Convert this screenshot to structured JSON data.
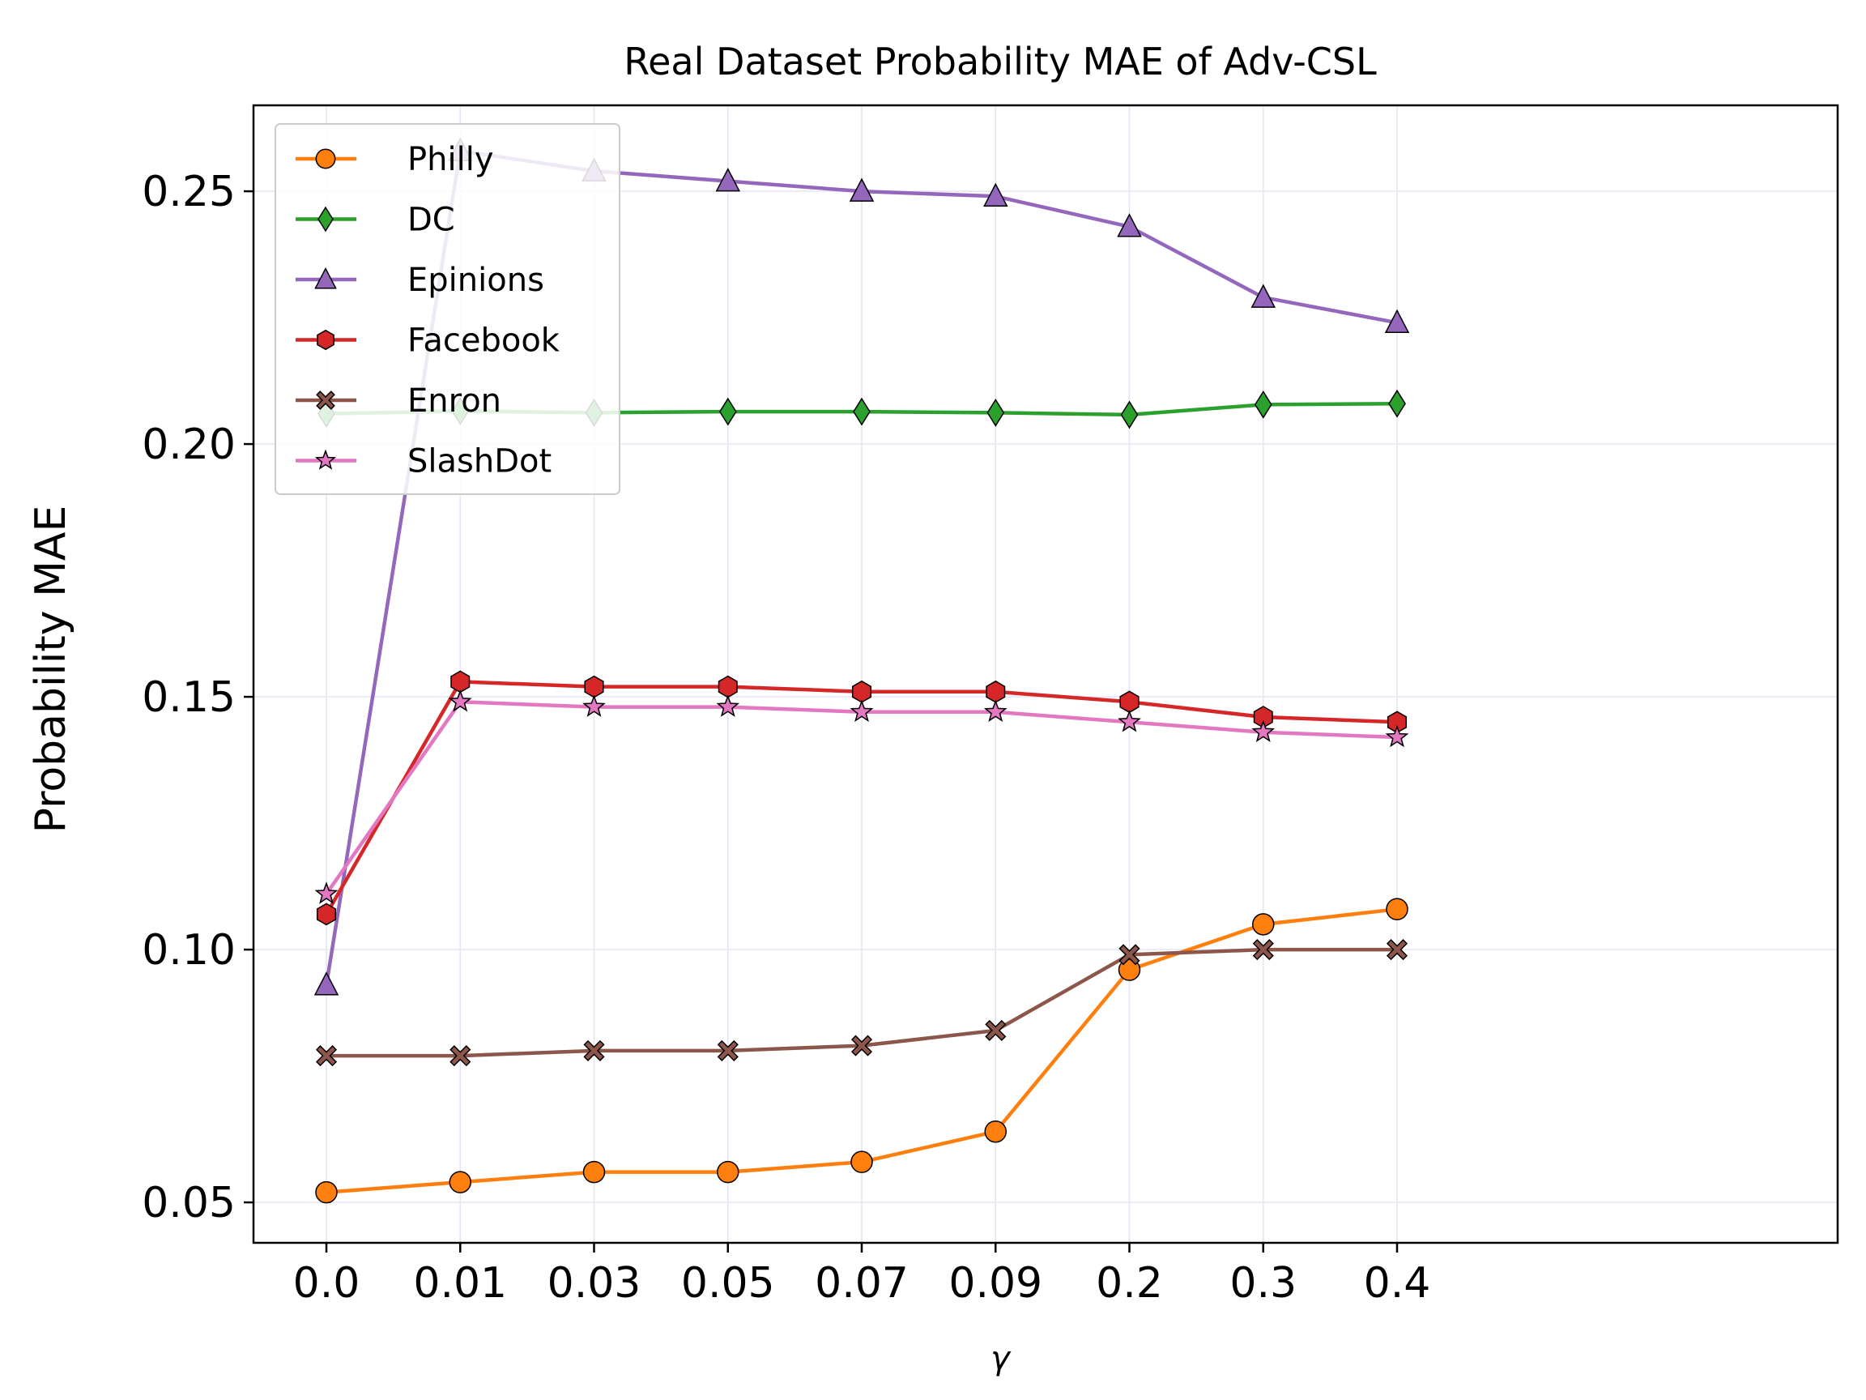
{
  "chart_data": {
    "type": "line",
    "title": "Real Dataset Probability MAE of Adv-CSL",
    "xlabel": "γ",
    "ylabel": "Probability MAE",
    "categories": [
      "0.0",
      "0.01",
      "0.03",
      "0.05",
      "0.07",
      "0.09",
      "0.2",
      "0.3",
      "0.4"
    ],
    "ylim": [
      0.042,
      0.267
    ],
    "yticks": [
      0.05,
      0.1,
      0.15,
      0.2,
      0.25
    ],
    "ytick_labels": [
      "0.05",
      "0.10",
      "0.15",
      "0.20",
      "0.25"
    ],
    "grid": true,
    "legend_position": "upper-left",
    "series": [
      {
        "name": "Philly",
        "color": "#ff7f0e",
        "marker": "circle",
        "values": [
          0.052,
          0.054,
          0.056,
          0.056,
          0.058,
          0.064,
          0.096,
          0.105,
          0.108
        ]
      },
      {
        "name": "DC",
        "color": "#2ca02c",
        "marker": "thin-diamond",
        "values": [
          0.206,
          0.2065,
          0.2062,
          0.2064,
          0.2064,
          0.2062,
          0.2058,
          0.2078,
          0.208
        ]
      },
      {
        "name": "Epinions",
        "color": "#9467bd",
        "marker": "triangle",
        "values": [
          0.093,
          0.258,
          0.254,
          0.252,
          0.25,
          0.249,
          0.243,
          0.229,
          0.224
        ]
      },
      {
        "name": "Facebook",
        "color": "#d62728",
        "marker": "hexagon",
        "values": [
          0.107,
          0.153,
          0.152,
          0.152,
          0.151,
          0.151,
          0.149,
          0.146,
          0.145
        ]
      },
      {
        "name": "Enron",
        "color": "#8c564b",
        "marker": "x-filled",
        "values": [
          0.079,
          0.079,
          0.08,
          0.08,
          0.081,
          0.084,
          0.099,
          0.1,
          0.1
        ]
      },
      {
        "name": "SlashDot",
        "color": "#e377c2",
        "marker": "star",
        "values": [
          0.111,
          0.149,
          0.148,
          0.148,
          0.147,
          0.147,
          0.145,
          0.143,
          0.142
        ]
      }
    ]
  }
}
